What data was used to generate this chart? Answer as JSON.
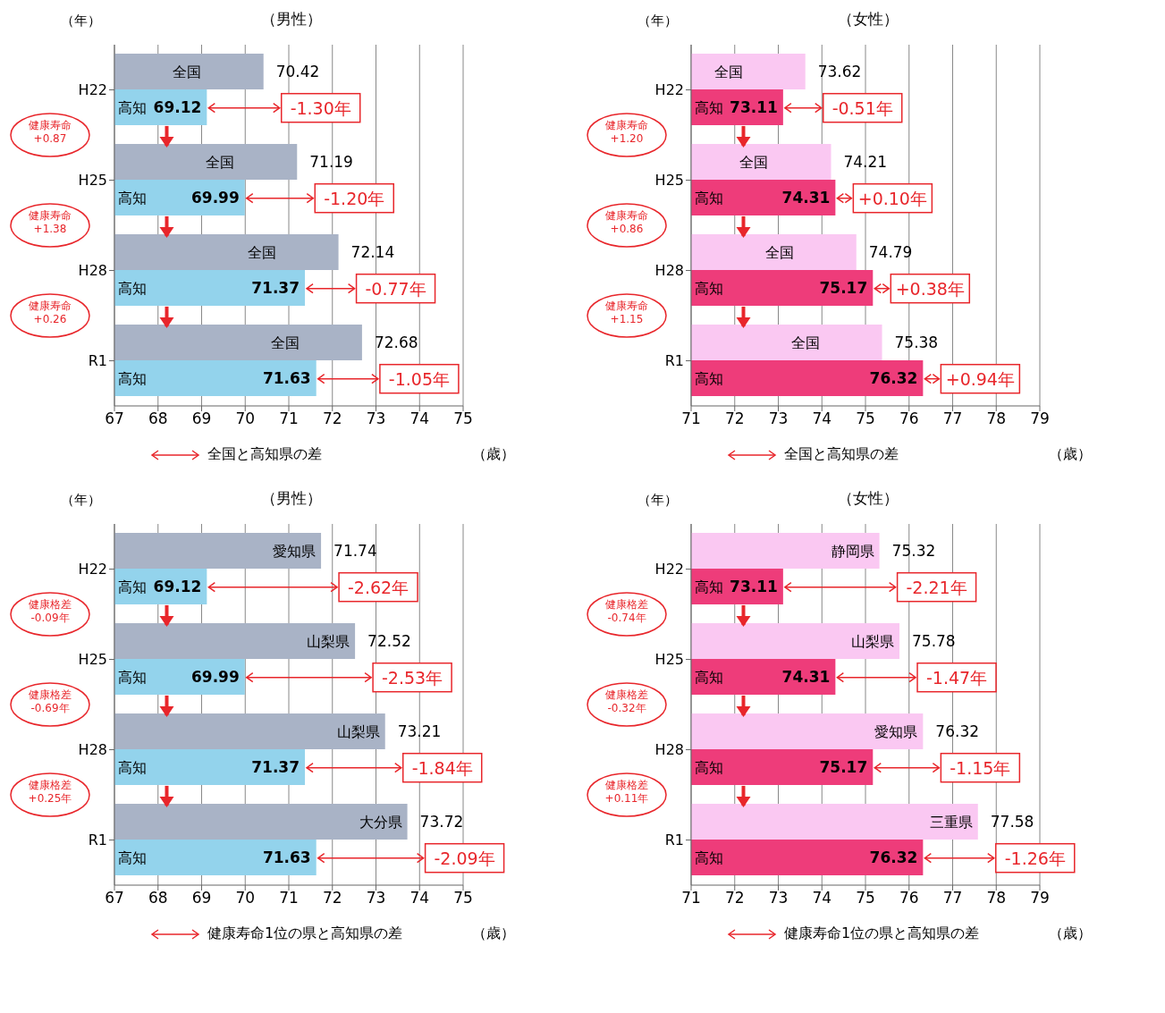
{
  "chart_data": [
    {
      "type": "bar",
      "orientation": "horizontal",
      "title": "（男性）",
      "xlabel": "（歳）",
      "ylabel": "（年）",
      "categories": [
        "H22",
        "H25",
        "H28",
        "R1"
      ],
      "series": [
        {
          "name": "全国",
          "color": "#a9b3c6",
          "values": [
            70.42,
            71.19,
            72.14,
            72.68
          ]
        },
        {
          "name": "高知",
          "color": "#93d3ec",
          "values": [
            69.12,
            69.99,
            71.37,
            71.63
          ]
        }
      ],
      "xlim": [
        67,
        75
      ],
      "xticks": [
        67,
        68,
        69,
        70,
        71,
        72,
        73,
        74,
        75
      ],
      "grid": "x",
      "data_labels": true,
      "annotations": [
        "全国と高知県の差",
        "健康寿命\n+0.87",
        "健康寿命\n+1.38",
        "健康寿命\n+0.26",
        {
          "text": "-1.30年",
          "x": 70.42,
          "y": "H22"
        },
        {
          "text": "-1.20年",
          "x": 71.19,
          "y": "H25"
        },
        {
          "text": "-0.77年",
          "x": 72.14,
          "y": "H28"
        },
        {
          "text": "-1.05年",
          "x": 72.68,
          "y": "R1"
        }
      ]
    },
    {
      "type": "bar",
      "orientation": "horizontal",
      "title": "（女性）",
      "xlabel": "（歳）",
      "ylabel": "（年）",
      "categories": [
        "H22",
        "H25",
        "H28",
        "R1"
      ],
      "series": [
        {
          "name": "全国",
          "color": "#fac8f2",
          "values": [
            73.62,
            74.21,
            74.79,
            75.38
          ]
        },
        {
          "name": "高知",
          "color": "#ee3c7a",
          "values": [
            73.11,
            74.31,
            75.17,
            76.32
          ]
        }
      ],
      "xlim": [
        71,
        79
      ],
      "xticks": [
        71,
        72,
        73,
        74,
        75,
        76,
        77,
        78,
        79
      ],
      "grid": "x",
      "data_labels": true,
      "annotations": [
        "全国と高知県の差",
        "健康寿命\n+1.20",
        "健康寿命\n+0.86",
        "健康寿命\n+1.15",
        {
          "text": "-0.51年",
          "x": 73.62,
          "y": "H22"
        },
        {
          "text": "+0.10年",
          "x": 74.31,
          "y": "H25"
        },
        {
          "text": "+0.38年",
          "x": 75.17,
          "y": "H28"
        },
        {
          "text": "+0.94年",
          "x": 76.32,
          "y": "R1"
        }
      ]
    },
    {
      "type": "bar",
      "orientation": "horizontal",
      "title": "（男性）",
      "xlabel": "（歳）",
      "ylabel": "（年）",
      "categories": [
        "H22",
        "H25",
        "H28",
        "R1"
      ],
      "series": [
        {
          "color": "#a9b3c6",
          "values": [
            71.74,
            72.52,
            73.21,
            73.72
          ]
        },
        {
          "name": "高知",
          "color": "#93d3ec",
          "values": [
            69.12,
            69.99,
            71.37,
            71.63
          ]
        }
      ],
      "xlim": [
        67,
        75
      ],
      "xticks": [
        67,
        68,
        69,
        70,
        71,
        72,
        73,
        74,
        75
      ],
      "grid": "x",
      "data_labels": true,
      "annotations": [
        "健康寿命1位の県と高知県の差",
        "健康格差\n-0.09年",
        "健康格差\n-0.69年",
        "健康格差\n+0.25年",
        {
          "text": "-2.62年",
          "x": 71.74,
          "y": "H22"
        },
        {
          "text": "-2.53年",
          "x": 72.52,
          "y": "H25"
        },
        {
          "text": "-1.84年",
          "x": 73.21,
          "y": "H28"
        },
        {
          "text": "-2.09年",
          "x": 73.72,
          "y": "R1"
        },
        {
          "text": "愛知県",
          "x": 71.74,
          "y": "H22"
        },
        {
          "text": "山梨県",
          "x": 72.52,
          "y": "H25"
        },
        {
          "text": "山梨県",
          "x": 73.21,
          "y": "H28"
        },
        {
          "text": "大分県",
          "x": 73.72,
          "y": "R1"
        }
      ]
    },
    {
      "type": "bar",
      "orientation": "horizontal",
      "title": "（女性）",
      "xlabel": "（歳）",
      "ylabel": "（年）",
      "categories": [
        "H22",
        "H25",
        "H28",
        "R1"
      ],
      "series": [
        {
          "color": "#fac8f2",
          "values": [
            75.32,
            75.78,
            76.32,
            77.58
          ]
        },
        {
          "name": "高知",
          "color": "#ee3c7a",
          "values": [
            73.11,
            74.31,
            75.17,
            76.32
          ]
        }
      ],
      "xlim": [
        71,
        79
      ],
      "xticks": [
        71,
        72,
        73,
        74,
        75,
        76,
        77,
        78,
        79
      ],
      "grid": "x",
      "data_labels": true,
      "annotations": [
        "健康寿命1位の県と高知県の差",
        "健康格差\n-0.74年",
        "健康格差\n-0.32年",
        "健康格差\n+0.11年",
        {
          "text": "-2.21年",
          "x": 75.32,
          "y": "H22"
        },
        {
          "text": "-1.47年",
          "x": 75.78,
          "y": "H25"
        },
        {
          "text": "-1.15年",
          "x": 76.32,
          "y": "H28"
        },
        {
          "text": "-1.26年",
          "x": 77.58,
          "y": "R1"
        },
        {
          "text": "静岡県",
          "x": 75.32,
          "y": "H22"
        },
        {
          "text": "山梨県",
          "x": 75.78,
          "y": "H25"
        },
        {
          "text": "愛知県",
          "x": 76.32,
          "y": "H28"
        },
        {
          "text": "三重県",
          "x": 77.58,
          "y": "R1"
        }
      ]
    }
  ]
}
